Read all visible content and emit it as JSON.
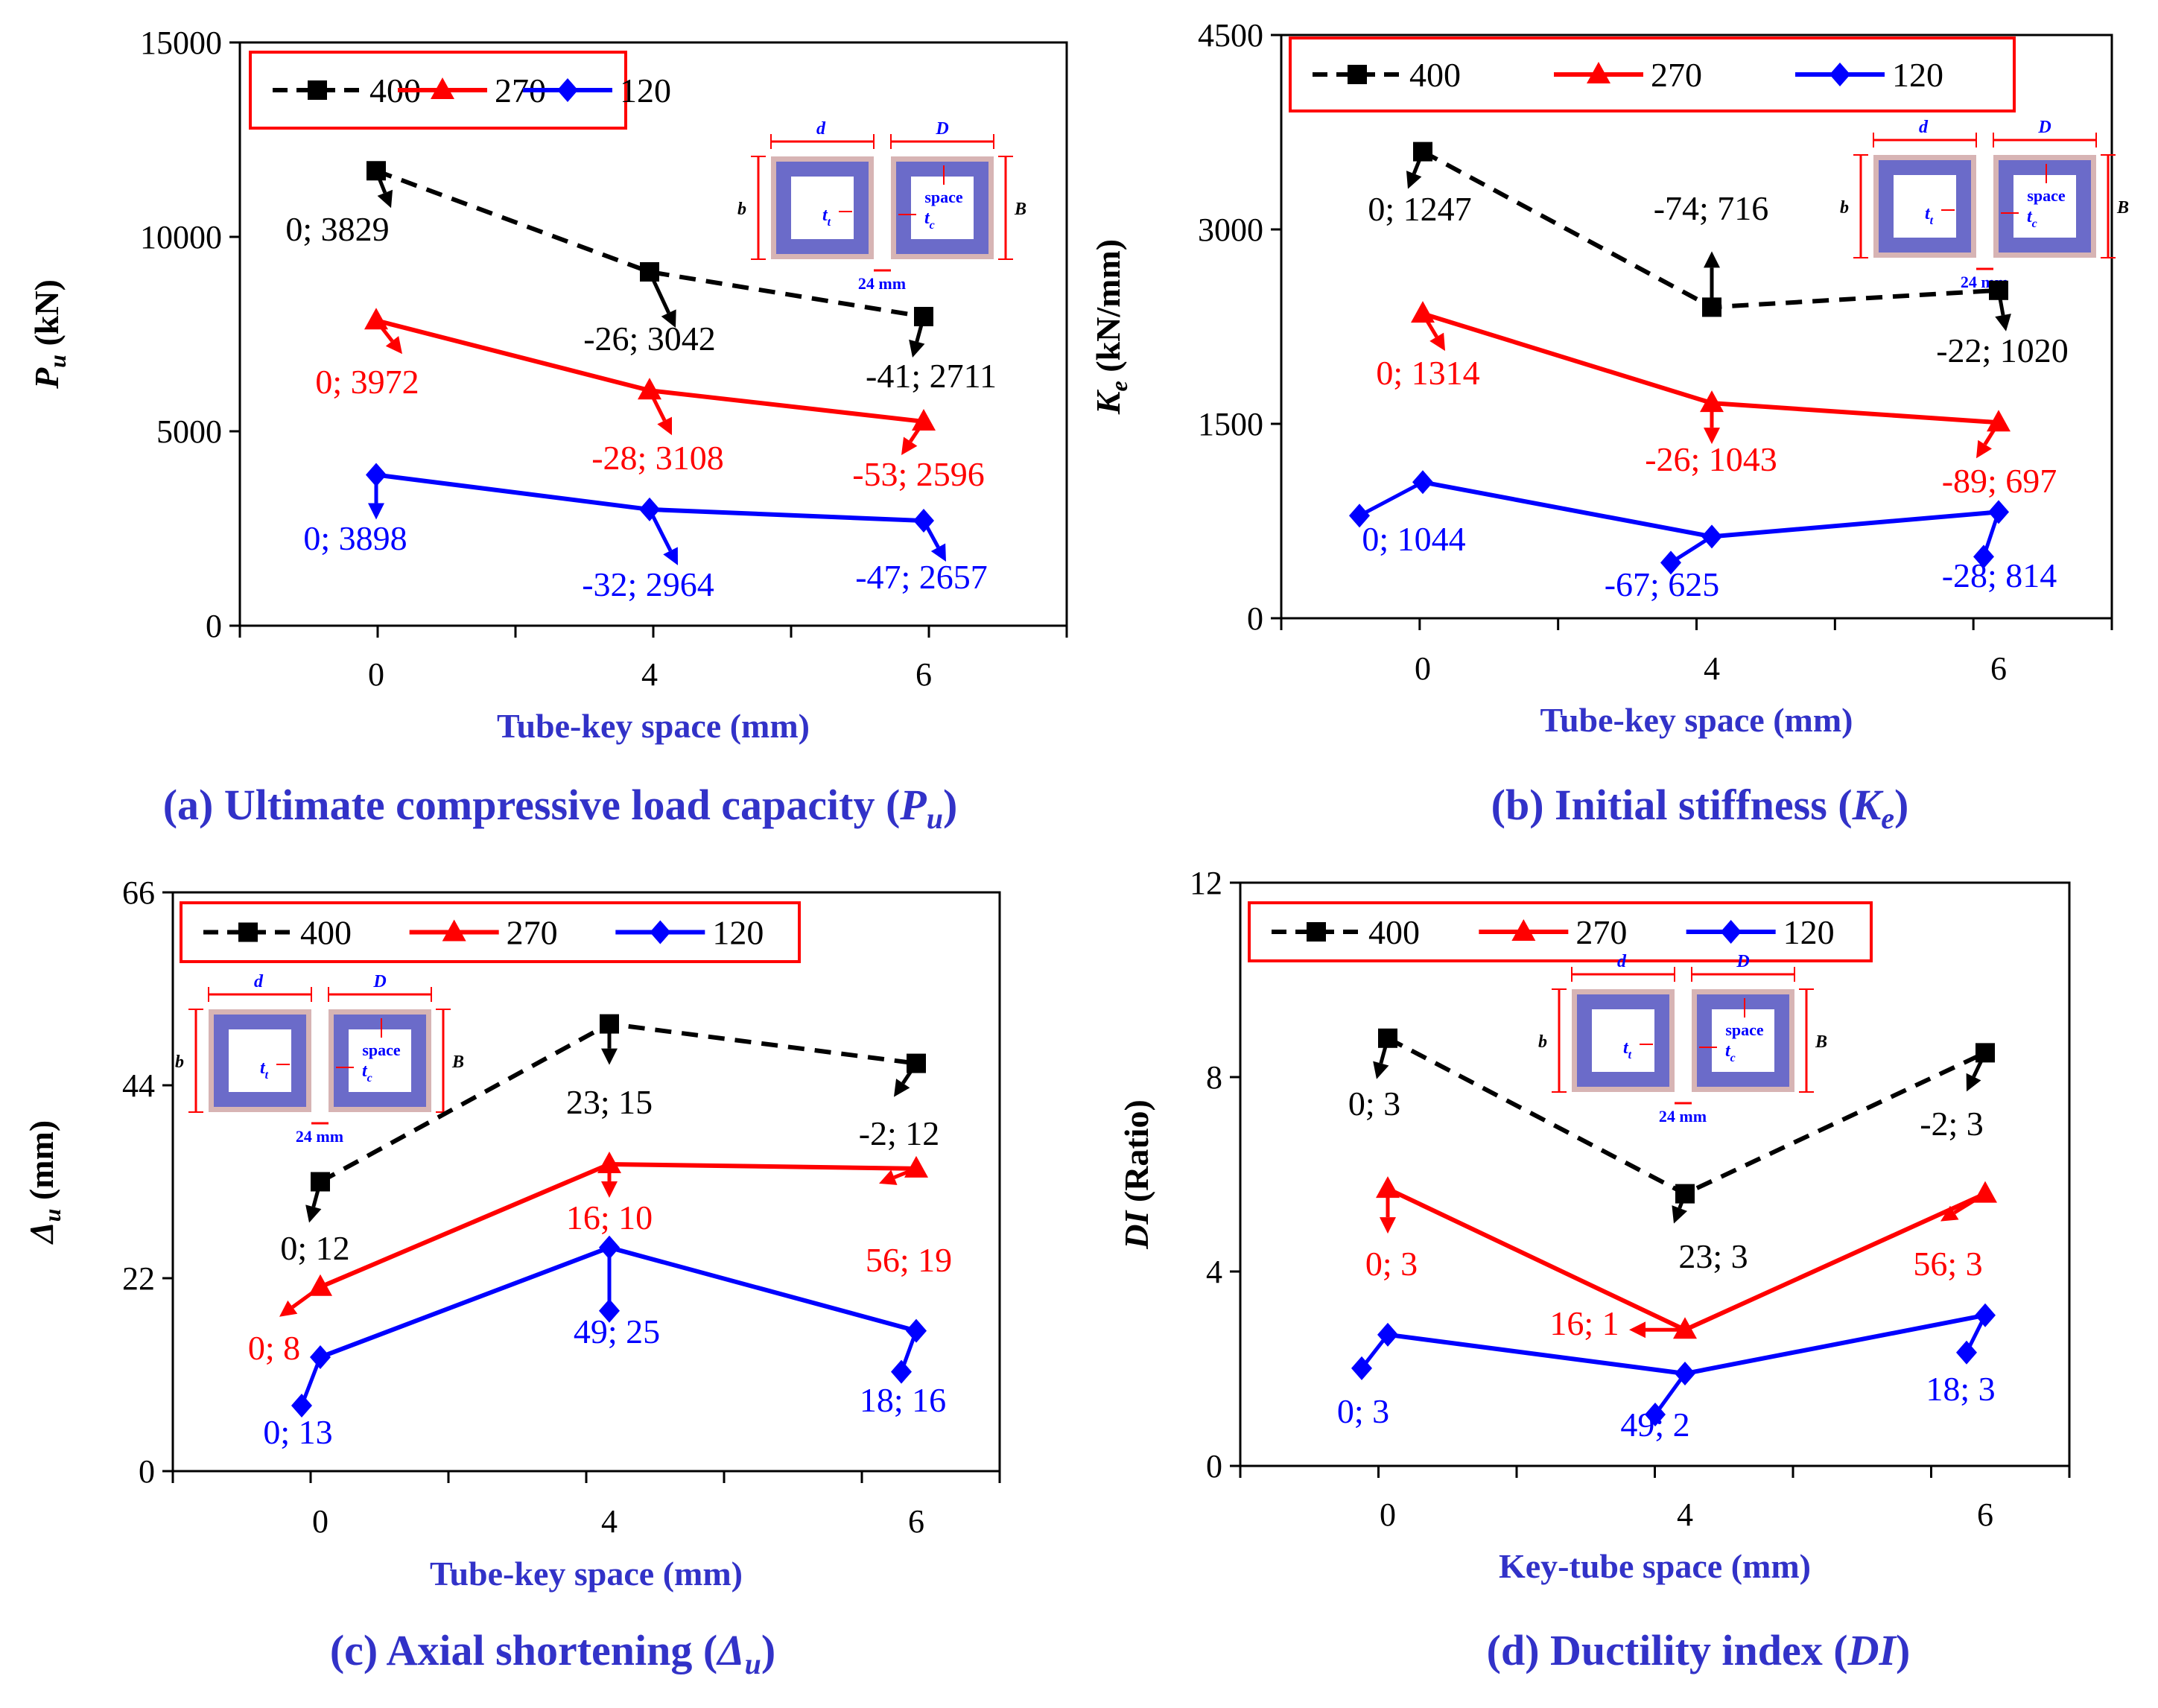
{
  "legend_series": [
    "400",
    "270",
    "120"
  ],
  "colors": {
    "s400": "#000000",
    "s270": "#ff0000",
    "s120": "#0000ff",
    "accent_blue": "#3232c8",
    "legend_border": "#ff0000",
    "tube_fill": "#6b6bc9",
    "tube_edge": "#d7b4b4"
  },
  "inset": {
    "d": "d",
    "D": "D",
    "b": "b",
    "B": "B",
    "tt": "t",
    "tt_sub": "t",
    "tc": "t",
    "tc_sub": "c",
    "space": "space",
    "gap": "24 mm"
  },
  "chart_data": [
    {
      "type": "line",
      "panel": "a",
      "caption_main": "(a) Ultimate compressive load capacity (",
      "caption_sym": "P",
      "caption_sub": "u",
      "caption_end": ")",
      "xlabel": "Tube-key space (mm)",
      "ylabel_sym": "P",
      "ylabel_sub": "u",
      "ylabel_unit": " (kN)",
      "categories": [
        "0",
        "4",
        "6"
      ],
      "ylim": [
        0,
        15000
      ],
      "yticks": [
        "0",
        "5000",
        "10000",
        "15000"
      ],
      "series": [
        {
          "name": "400",
          "values": [
            11700,
            9100,
            7950
          ],
          "labels": [
            "0; 3829",
            "-26; 3042",
            "-41; 2711"
          ]
        },
        {
          "name": "270",
          "values": [
            7850,
            6050,
            5250
          ],
          "labels": [
            "0; 3972",
            "-28; 3108",
            "-53; 2596"
          ]
        },
        {
          "name": "120",
          "values": [
            3880,
            2990,
            2700
          ],
          "labels": [
            "0; 3898",
            "-32; 2964",
            "-47; 2657"
          ]
        }
      ]
    },
    {
      "type": "line",
      "panel": "b",
      "caption_main": "(b) Initial stiffness (",
      "caption_sym": "K",
      "caption_sub": "e",
      "caption_end": ")",
      "xlabel": "Tube-key space (mm)",
      "ylabel_sym": "K",
      "ylabel_sub": "e",
      "ylabel_unit": " (kN/mm)",
      "categories": [
        "0",
        "4",
        "6"
      ],
      "ylim": [
        0,
        4500
      ],
      "yticks": [
        "0",
        "1500",
        "3000",
        "4500"
      ],
      "series": [
        {
          "name": "400",
          "values": [
            3600,
            2400,
            2530
          ],
          "labels": [
            "0; 1247",
            "-74; 716",
            "-22; 1020"
          ]
        },
        {
          "name": "270",
          "values": [
            2350,
            1660,
            1510
          ],
          "labels": [
            "0; 1314",
            "-26; 1043",
            "-89; 697"
          ]
        },
        {
          "name": "120",
          "values": [
            1050,
            630,
            820
          ],
          "labels": [
            "0; 1044",
            "-67; 625",
            "-28; 814"
          ]
        }
      ]
    },
    {
      "type": "line",
      "panel": "c",
      "caption_main": "(c) Axial shortening (",
      "caption_sym": "Δ",
      "caption_sub": "u",
      "caption_end": ")",
      "xlabel": "Tube-key space (mm)",
      "ylabel_sym": "Δ",
      "ylabel_sub": "u",
      "ylabel_unit": " (mm)",
      "categories": [
        "0",
        "4",
        "6"
      ],
      "ylim": [
        0,
        66
      ],
      "yticks": [
        "0",
        "22",
        "44",
        "66"
      ],
      "series": [
        {
          "name": "400",
          "values": [
            33,
            51,
            46.5
          ],
          "labels": [
            "0; 12",
            "23; 15",
            "-2; 12"
          ]
        },
        {
          "name": "270",
          "values": [
            21,
            35,
            34.5
          ],
          "labels": [
            "0; 8",
            "16; 10",
            "56; 19"
          ]
        },
        {
          "name": "120",
          "values": [
            13,
            25.5,
            16
          ],
          "labels": [
            "0; 13",
            "49; 25",
            "18; 16"
          ]
        }
      ]
    },
    {
      "type": "line",
      "panel": "d",
      "caption_main": "(d) Ductility index (",
      "caption_sym": "DI",
      "caption_sub": "",
      "caption_end": ")",
      "xlabel": "Key-tube space (mm)",
      "ylabel_sym": "DI",
      "ylabel_sub": "",
      "ylabel_unit": " (Ratio)",
      "categories": [
        "0",
        "4",
        "6"
      ],
      "ylim": [
        0,
        12
      ],
      "yticks": [
        "0",
        "4",
        "8",
        "12"
      ],
      "series": [
        {
          "name": "400",
          "values": [
            8.8,
            5.6,
            8.5
          ],
          "labels": [
            "0; 3",
            "23; 3",
            "-2; 3"
          ]
        },
        {
          "name": "270",
          "values": [
            5.7,
            2.8,
            5.6
          ],
          "labels": [
            "0; 3",
            "16; 1",
            "56; 3"
          ]
        },
        {
          "name": "120",
          "values": [
            2.7,
            1.9,
            3.1
          ],
          "labels": [
            "0; 3",
            "49; 2",
            "18; 3"
          ]
        }
      ]
    }
  ]
}
